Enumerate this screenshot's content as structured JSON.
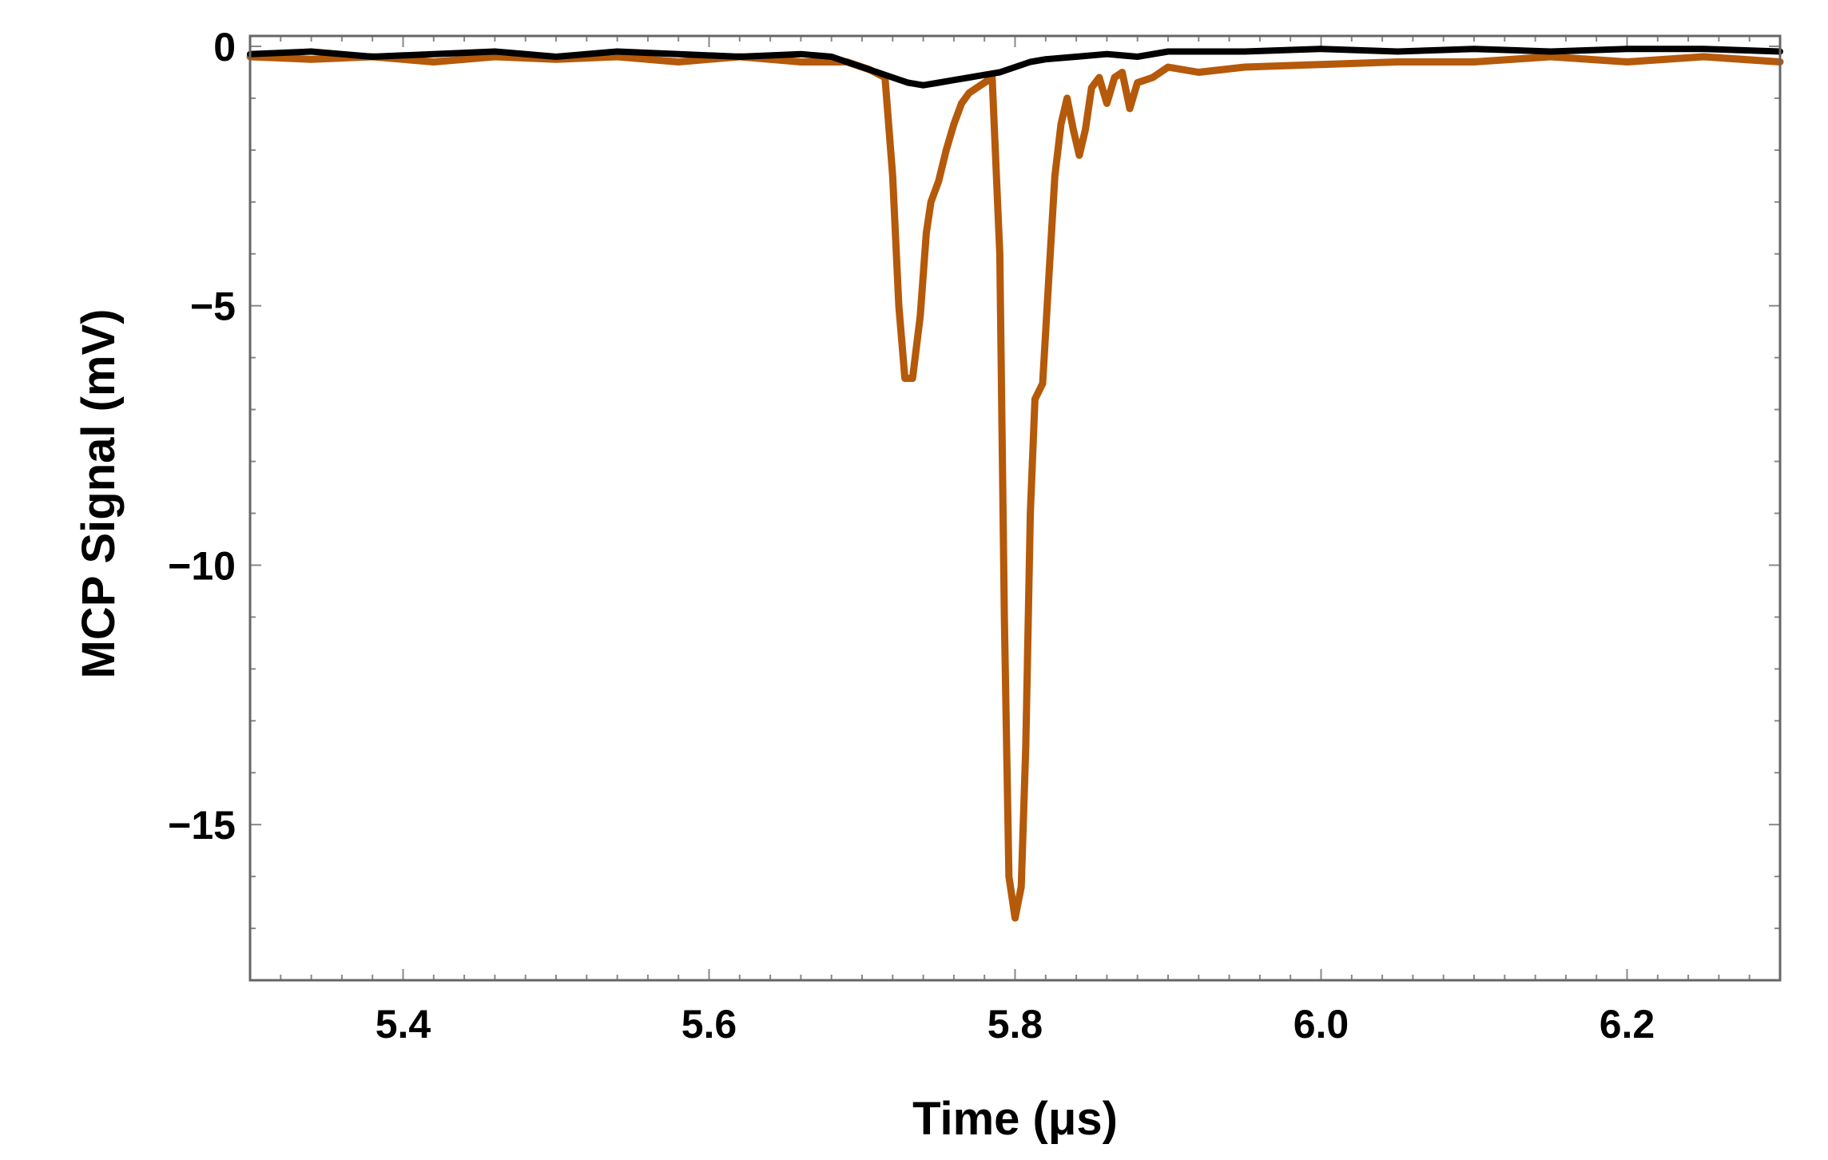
{
  "chart_data": {
    "type": "line",
    "xlabel": "Time (μs)",
    "ylabel": "MCP Signal (mV)",
    "xlim": [
      5.3,
      6.3
    ],
    "ylim": [
      -18,
      0.2
    ],
    "xticks": [
      5.4,
      5.6,
      5.8,
      6.0,
      6.2
    ],
    "xtick_labels": [
      "5.4",
      "5.6",
      "5.8",
      "6.0",
      "6.2"
    ],
    "yticks": [
      0,
      -5,
      -10,
      -15
    ],
    "ytick_labels": [
      "0",
      "−5",
      "−10",
      "−15"
    ],
    "grid": false,
    "legend": "none",
    "colors": {
      "series_orange": "#b5590a",
      "series_black": "#000000",
      "frame": "#666666"
    },
    "series": [
      {
        "color": "#b5590a",
        "x": [
          5.3,
          5.34,
          5.38,
          5.42,
          5.46,
          5.5,
          5.54,
          5.58,
          5.62,
          5.66,
          5.69,
          5.705,
          5.715,
          5.72,
          5.724,
          5.728,
          5.733,
          5.738,
          5.742,
          5.745,
          5.75,
          5.755,
          5.76,
          5.765,
          5.77,
          5.775,
          5.78,
          5.785,
          5.79,
          5.793,
          5.796,
          5.8,
          5.804,
          5.807,
          5.81,
          5.813,
          5.818,
          5.822,
          5.826,
          5.83,
          5.834,
          5.838,
          5.842,
          5.846,
          5.85,
          5.855,
          5.86,
          5.865,
          5.87,
          5.875,
          5.88,
          5.89,
          5.9,
          5.92,
          5.95,
          6.0,
          6.05,
          6.1,
          6.15,
          6.2,
          6.25,
          6.3
        ],
        "y": [
          -0.2,
          -0.25,
          -0.2,
          -0.3,
          -0.2,
          -0.25,
          -0.2,
          -0.3,
          -0.2,
          -0.3,
          -0.3,
          -0.45,
          -0.6,
          -2.5,
          -5.0,
          -6.4,
          -6.4,
          -5.2,
          -3.6,
          -3.0,
          -2.6,
          -2.0,
          -1.5,
          -1.1,
          -0.9,
          -0.8,
          -0.7,
          -0.6,
          -4.0,
          -11.0,
          -16.0,
          -16.8,
          -16.2,
          -13.5,
          -9.0,
          -6.8,
          -6.5,
          -4.5,
          -2.5,
          -1.5,
          -1.0,
          -1.6,
          -2.1,
          -1.6,
          -0.8,
          -0.6,
          -1.1,
          -0.6,
          -0.5,
          -1.2,
          -0.7,
          -0.6,
          -0.4,
          -0.5,
          -0.4,
          -0.35,
          -0.3,
          -0.3,
          -0.2,
          -0.3,
          -0.2,
          -0.3
        ]
      },
      {
        "color": "#000000",
        "x": [
          5.3,
          5.34,
          5.38,
          5.42,
          5.46,
          5.5,
          5.54,
          5.58,
          5.62,
          5.66,
          5.68,
          5.69,
          5.7,
          5.71,
          5.72,
          5.73,
          5.74,
          5.75,
          5.76,
          5.77,
          5.78,
          5.79,
          5.8,
          5.81,
          5.82,
          5.84,
          5.86,
          5.88,
          5.9,
          5.95,
          6.0,
          6.05,
          6.1,
          6.15,
          6.2,
          6.25,
          6.3
        ],
        "y": [
          -0.15,
          -0.1,
          -0.2,
          -0.15,
          -0.1,
          -0.2,
          -0.1,
          -0.15,
          -0.2,
          -0.15,
          -0.2,
          -0.3,
          -0.4,
          -0.5,
          -0.6,
          -0.7,
          -0.75,
          -0.7,
          -0.65,
          -0.6,
          -0.55,
          -0.5,
          -0.4,
          -0.3,
          -0.25,
          -0.2,
          -0.15,
          -0.2,
          -0.1,
          -0.1,
          -0.05,
          -0.1,
          -0.05,
          -0.1,
          -0.05,
          -0.05,
          -0.1
        ]
      }
    ]
  }
}
